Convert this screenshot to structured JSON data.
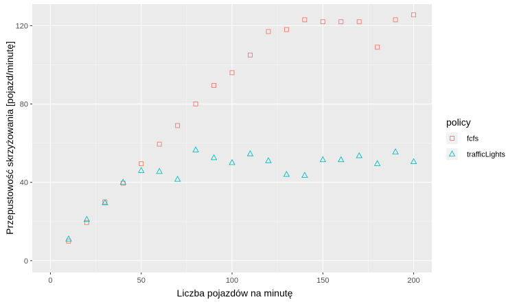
{
  "chart_data": {
    "type": "scatter",
    "xlabel": "Liczba pojazdów na minutę",
    "ylabel": "Przepustowość skrzyżowania [pojazd/minutę]",
    "xlim": [
      -10,
      210
    ],
    "ylim": [
      -6,
      131
    ],
    "x_ticks": [
      0,
      50,
      100,
      150,
      200
    ],
    "y_ticks": [
      0,
      40,
      80,
      120
    ],
    "grid": true,
    "legend_position": "right",
    "legend_title": "policy",
    "x": [
      10,
      20,
      30,
      40,
      50,
      60,
      70,
      80,
      90,
      100,
      110,
      120,
      130,
      140,
      150,
      160,
      170,
      180,
      190,
      200
    ],
    "series": [
      {
        "name": "fcfs",
        "color": "#F8766D",
        "marker": "square",
        "values": [
          10,
          19.5,
          30,
          39.5,
          49.5,
          59.5,
          69,
          80,
          89.5,
          96,
          105,
          117,
          118,
          123,
          122,
          122,
          122,
          109,
          123,
          125.5
        ]
      },
      {
        "name": "trafficLights",
        "color": "#00BFC4",
        "marker": "triangle",
        "values": [
          11,
          21,
          29.5,
          40,
          46,
          45.5,
          41.5,
          56.5,
          52.5,
          50,
          54.5,
          51,
          44,
          43.5,
          51.5,
          51.5,
          53.5,
          49.5,
          55.5,
          50.5
        ]
      }
    ]
  }
}
